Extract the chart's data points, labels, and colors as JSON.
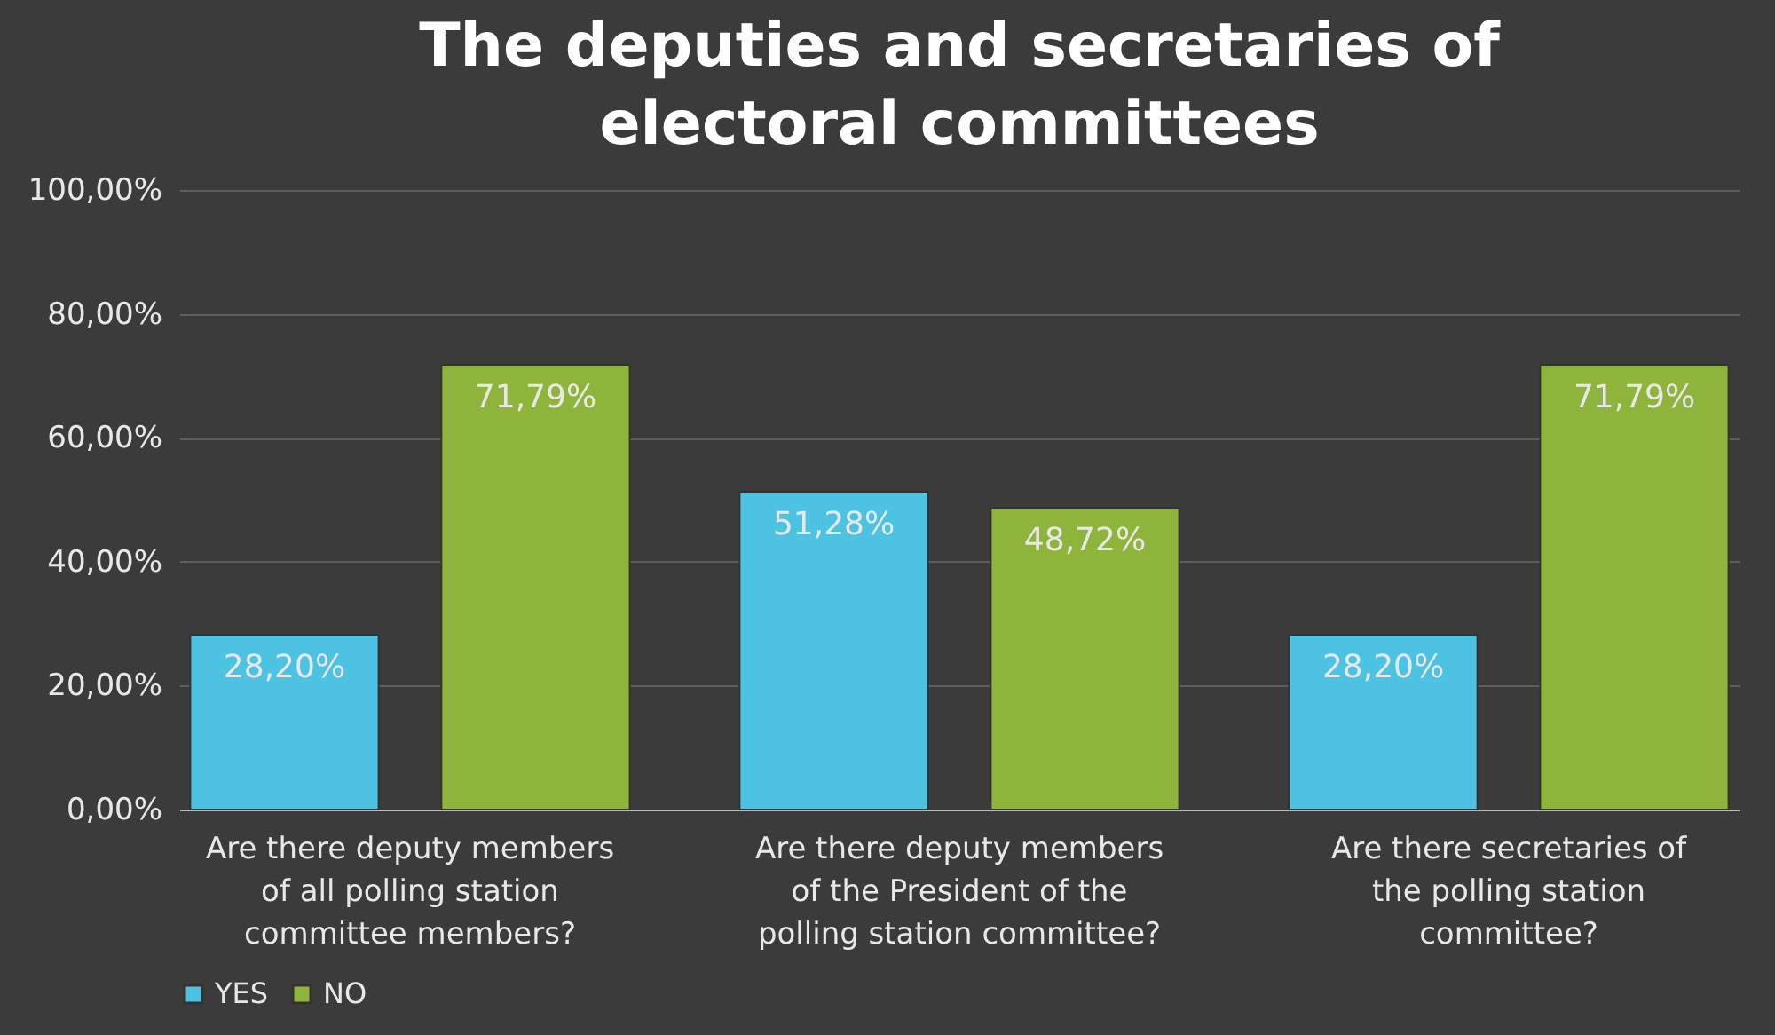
{
  "chart_data": {
    "type": "bar",
    "title": "The deputies and secretaries of electoral committees",
    "categories": [
      "Are there deputy members of all polling station committee members?",
      "Are there deputy members of the President of the polling station committee?",
      "Are there secretaries of the polling station committee?"
    ],
    "series": [
      {
        "name": "YES",
        "color": "#4cc3e3",
        "values": [
          28.2,
          51.28,
          28.2
        ],
        "value_labels": [
          "28,20%",
          "51,28%",
          "28,20%"
        ]
      },
      {
        "name": "NO",
        "color": "#8fb43c",
        "values": [
          71.79,
          48.72,
          71.79
        ],
        "value_labels": [
          "71,79%",
          "48,72%",
          "71,79%"
        ]
      }
    ],
    "ylim": [
      0,
      100
    ],
    "yticks": [
      {
        "value": 0,
        "label": "0,00%"
      },
      {
        "value": 20,
        "label": "20,00%"
      },
      {
        "value": 40,
        "label": "40,00%"
      },
      {
        "value": 60,
        "label": "60,00%"
      },
      {
        "value": 80,
        "label": "80,00%"
      },
      {
        "value": 100,
        "label": "100,00%"
      }
    ],
    "grid": "y",
    "legend": "bottom"
  }
}
